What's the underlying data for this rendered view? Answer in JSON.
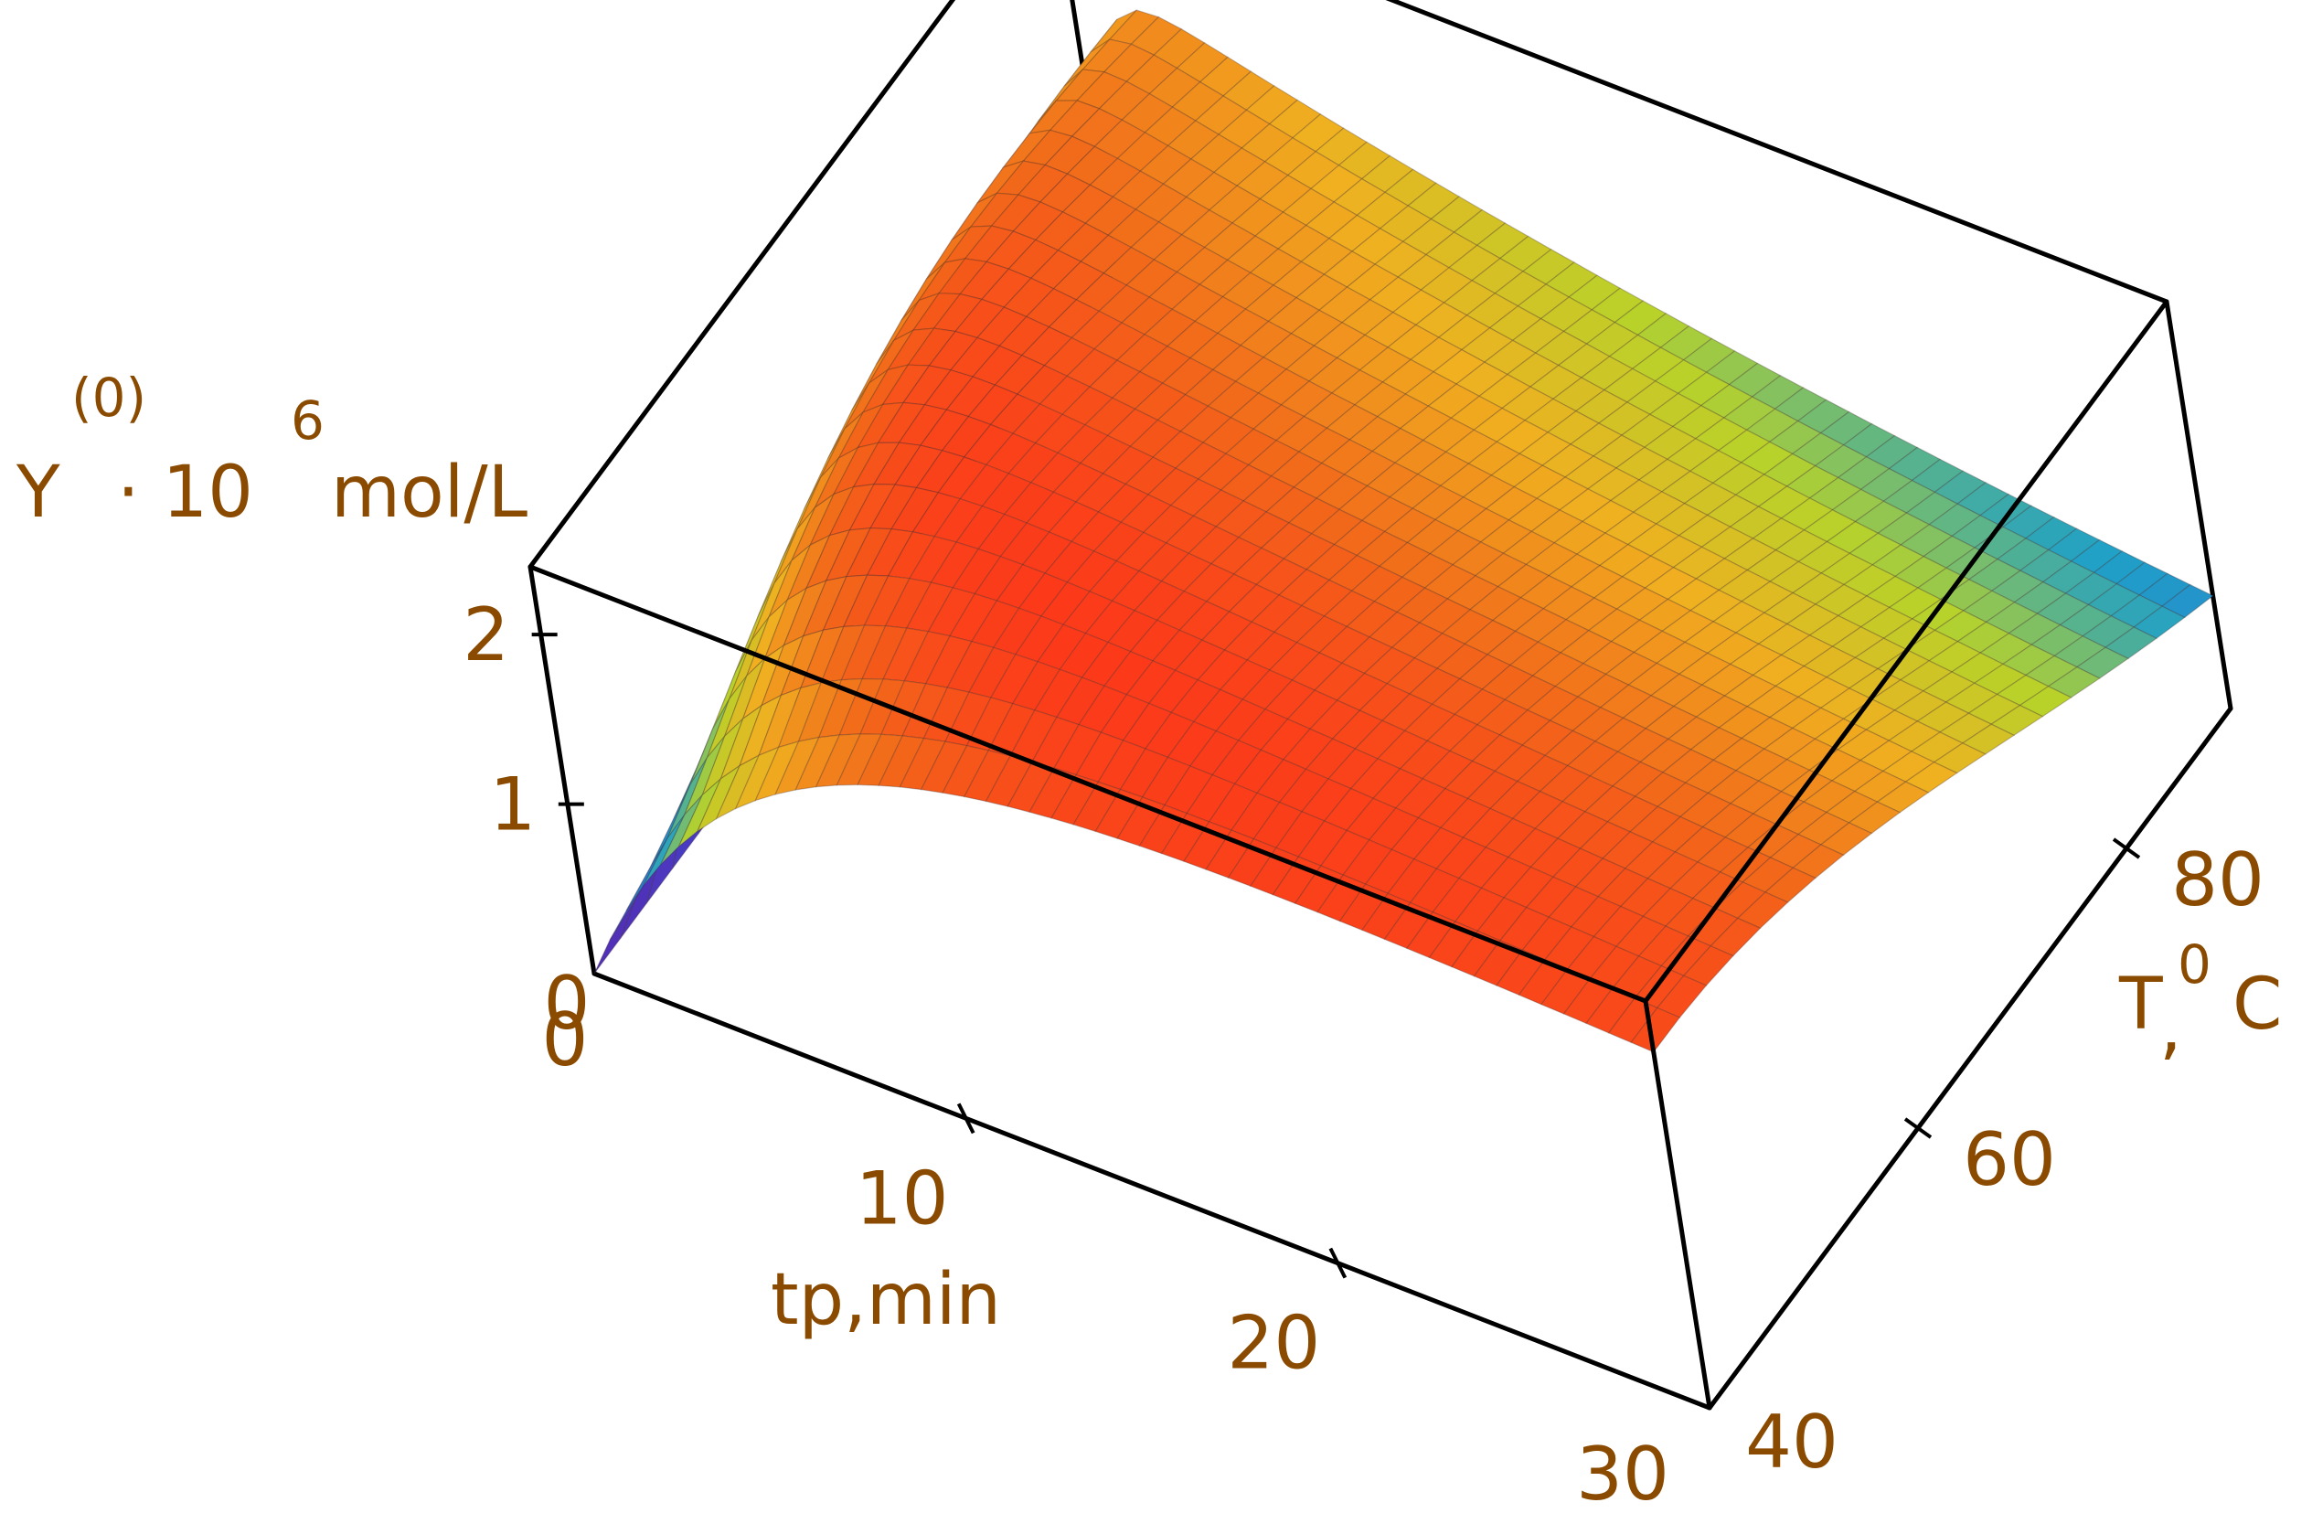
{
  "chart_data": {
    "type": "surface3d",
    "x_axis": {
      "label": "tp,min",
      "ticks": [
        0,
        10,
        20,
        30
      ],
      "range": [
        0,
        30
      ]
    },
    "y_axis": {
      "label_main": "T",
      "label_sep": ",",
      "label_sup": "0",
      "label_unit": "C",
      "ticks": [
        40,
        60,
        80
      ],
      "range": [
        40,
        90
      ]
    },
    "z_axis": {
      "label_main": "Y",
      "label_sup": "(0)",
      "label_mult": "· 10",
      "label_exp": "6",
      "label_unit": "mol/L",
      "ticks": [
        0,
        1,
        2
      ],
      "range": [
        0,
        2.4
      ]
    },
    "colormap": [
      "#5b1fa8",
      "#3a52d6",
      "#1fa0c8",
      "#b8d22a",
      "#f0b020",
      "#f26a1a",
      "#ff2a1a"
    ],
    "surface_grid": {
      "tp": [
        0,
        0.6,
        1.2,
        1.8,
        2.4,
        3,
        3.6,
        4.2,
        4.8,
        5.4,
        6,
        6.6,
        7.2,
        7.8,
        8.4,
        9,
        9.6,
        10.2,
        10.8,
        11.4,
        12,
        12.6,
        13.2,
        13.8,
        14.4,
        15,
        15.6,
        16.2,
        16.8,
        17.4,
        18,
        18.6,
        19.2,
        19.8,
        20.4,
        21,
        21.6,
        22.2,
        22.8,
        23.4,
        24,
        24.6,
        25.2,
        25.8,
        26.4,
        27,
        27.6,
        28.2,
        28.8,
        29.4,
        30
      ],
      "T": [
        40,
        42.5,
        45,
        47.5,
        50,
        52.5,
        55,
        57.5,
        60,
        62.5,
        65,
        67.5,
        70,
        72.5,
        75,
        77.5,
        80,
        82.5,
        85,
        87.5,
        90
      ]
    }
  }
}
